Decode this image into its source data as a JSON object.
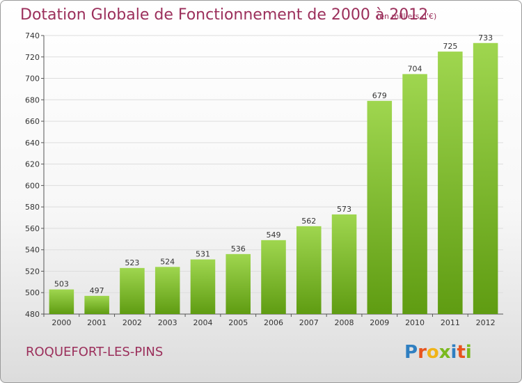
{
  "header": {
    "title": "Dotation Globale de Fonctionnement de 2000 à 2012",
    "unit_note": "(en milliers d'€)"
  },
  "footer": {
    "commune": "ROQUEFORT-LES-PINS",
    "logo_letters": [
      "P",
      "r",
      "o",
      "x",
      "i",
      "t",
      "i"
    ],
    "logo_colors": [
      "#2f7fc1",
      "#e8541e",
      "#f0b418",
      "#7ab91e",
      "#2f7fc1",
      "#e8541e",
      "#7ab91e"
    ]
  },
  "chart_data": {
    "type": "bar",
    "title": "Dotation Globale de Fonctionnement de 2000 à 2012",
    "xlabel": "",
    "ylabel": "",
    "categories": [
      "2000",
      "2001",
      "2002",
      "2003",
      "2004",
      "2005",
      "2006",
      "2007",
      "2008",
      "2009",
      "2010",
      "2011",
      "2012"
    ],
    "values": [
      503,
      497,
      523,
      524,
      531,
      536,
      549,
      562,
      573,
      679,
      704,
      725,
      733
    ],
    "ylim": [
      480,
      740
    ],
    "yticks": [
      480,
      500,
      520,
      540,
      560,
      580,
      600,
      620,
      640,
      660,
      680,
      700,
      720,
      740
    ],
    "grid": true,
    "legend": "none",
    "colors": {
      "bar_light": "#9fd64f",
      "bar_dark": "#5f9c12",
      "grid": "#dddddd",
      "text": "#333333"
    }
  }
}
